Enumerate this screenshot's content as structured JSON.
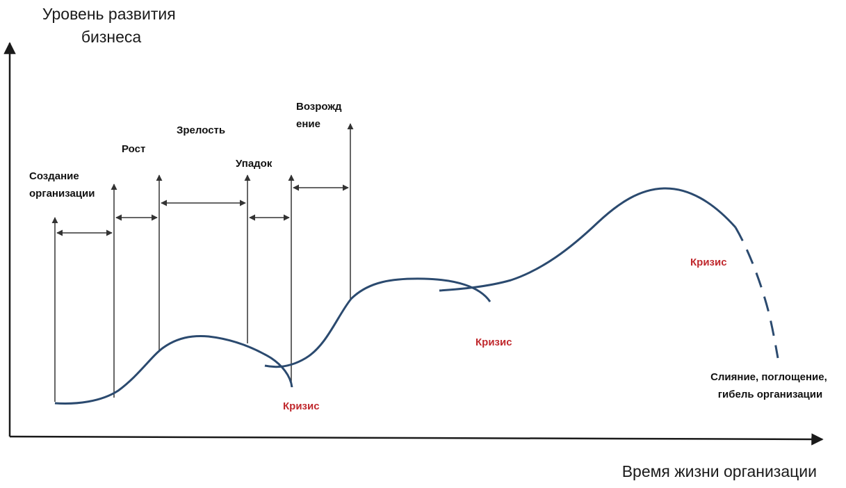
{
  "diagram": {
    "y_axis_title_lines": [
      "Уровень развития",
      "бизнеса"
    ],
    "x_axis_title": "Время жизни организации",
    "stages": [
      {
        "label_lines": [
          "Создание",
          "организации"
        ]
      },
      {
        "label_lines": [
          "Рост"
        ]
      },
      {
        "label_lines": [
          "Зрелость"
        ]
      },
      {
        "label_lines": [
          "Упадок"
        ]
      },
      {
        "label_lines": [
          "Возрожд",
          "ение"
        ]
      }
    ],
    "crisis_labels": [
      "Кризис",
      "Кризис",
      "Кризис"
    ],
    "end_label_lines": [
      "Слияние, поглощение,",
      "гибель организации"
    ]
  },
  "colors": {
    "curve": "#2b4a6f",
    "crisis_text": "#c0282d",
    "axis": "#1a1a1a",
    "marker": "#333333"
  }
}
